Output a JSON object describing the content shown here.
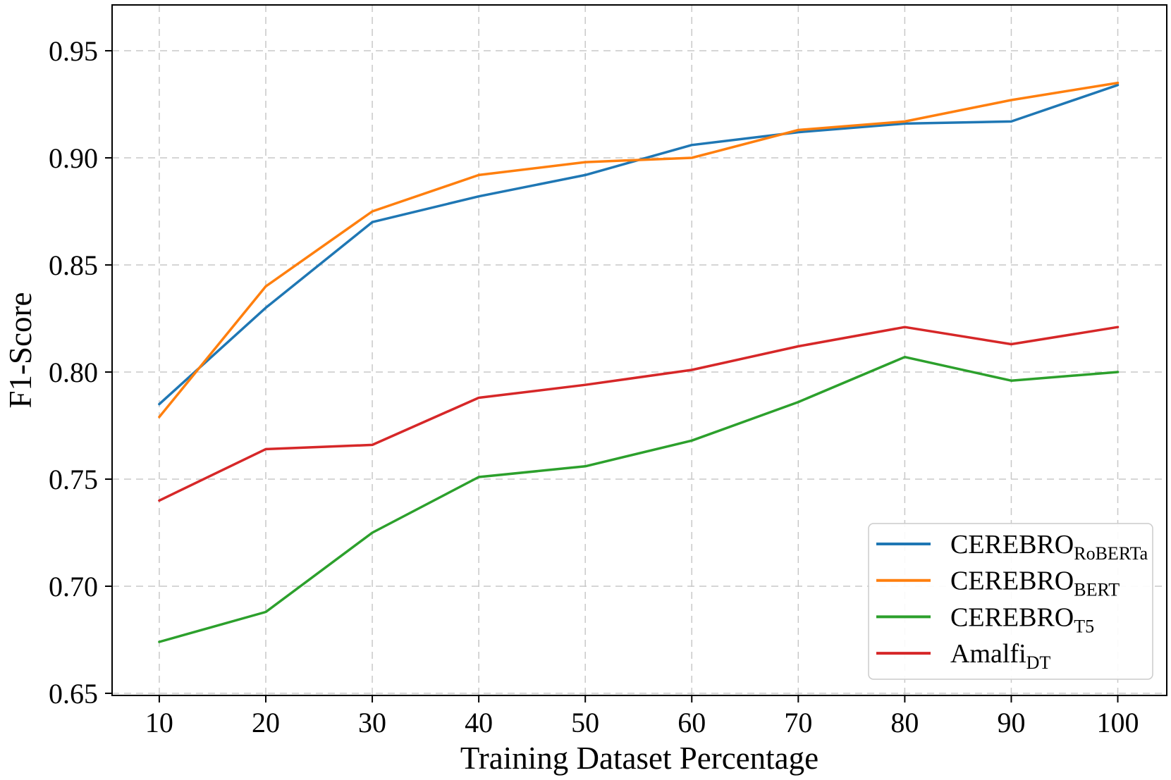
{
  "chart_data": {
    "type": "line",
    "title": "",
    "xlabel": "Training Dataset Percentage",
    "ylabel": "F1-Score",
    "x": [
      10,
      20,
      30,
      40,
      50,
      60,
      70,
      80,
      90,
      100
    ],
    "series": [
      {
        "label": "CEREBRO",
        "subscript": "RoBERTa",
        "color": "#1f77b4",
        "values": [
          0.785,
          0.83,
          0.87,
          0.882,
          0.892,
          0.906,
          0.912,
          0.916,
          0.917,
          0.934
        ]
      },
      {
        "label": "CEREBRO",
        "subscript": "BERT",
        "color": "#ff7f0e",
        "values": [
          0.779,
          0.84,
          0.875,
          0.892,
          0.898,
          0.9,
          0.913,
          0.917,
          0.927,
          0.935
        ]
      },
      {
        "label": "CEREBRO",
        "subscript": "T5",
        "color": "#2ca02c",
        "values": [
          0.674,
          0.688,
          0.725,
          0.751,
          0.756,
          0.768,
          0.786,
          0.807,
          0.796,
          0.8
        ]
      },
      {
        "label": "Amalfi",
        "subscript": "DT",
        "color": "#d62728",
        "values": [
          0.74,
          0.764,
          0.766,
          0.788,
          0.794,
          0.801,
          0.812,
          0.821,
          0.813,
          0.821
        ]
      }
    ],
    "xticks": [
      10,
      20,
      30,
      40,
      50,
      60,
      70,
      80,
      90,
      100
    ],
    "xticklabels": [
      "10",
      "20",
      "30",
      "40",
      "50",
      "60",
      "70",
      "80",
      "90",
      "100"
    ],
    "yticks": [
      0.65,
      0.7,
      0.75,
      0.8,
      0.85,
      0.9,
      0.95
    ],
    "yticklabels": [
      "0.65",
      "0.70",
      "0.75",
      "0.80",
      "0.85",
      "0.90",
      "0.95"
    ],
    "xlim": [
      5.57,
      104.6
    ],
    "ylim": [
      0.649,
      0.9714
    ],
    "grid": true,
    "legend_position": "lower right",
    "grid_color": "#c8c8c8",
    "axis_color": "#000000"
  }
}
